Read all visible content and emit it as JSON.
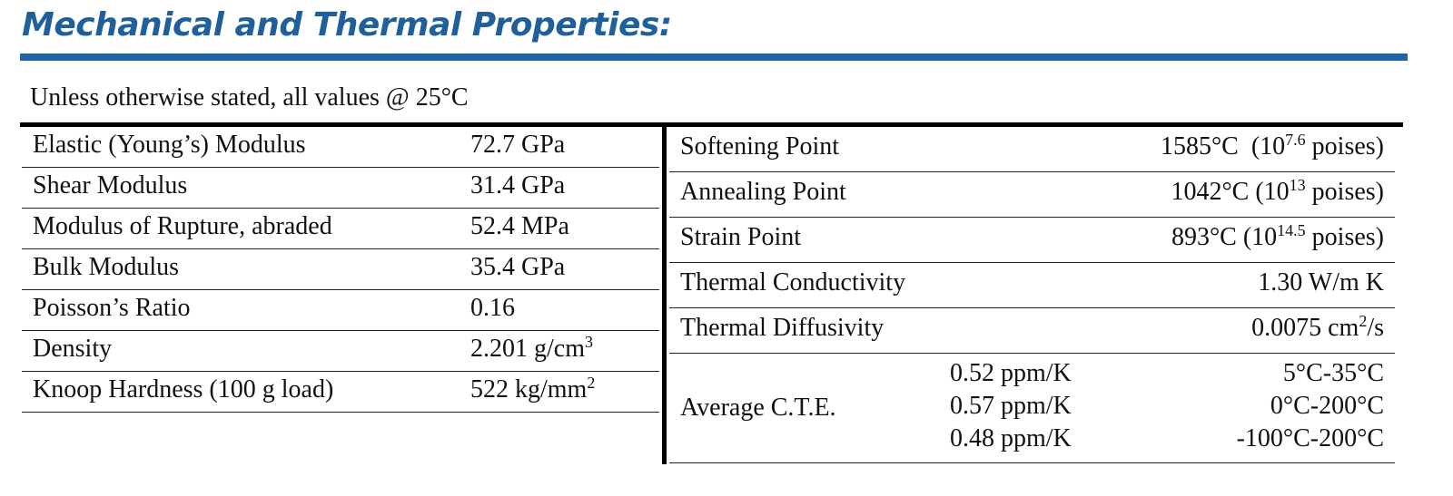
{
  "title": "Mechanical and Thermal Properties:",
  "subtitle": "Unless otherwise stated, all values @ 25°C",
  "left_rows": [
    {
      "label": "Elastic (Young’s) Modulus",
      "value": "72.7 GPa"
    },
    {
      "label": "Shear Modulus",
      "value": "31.4 GPa"
    },
    {
      "label": "Modulus of Rupture, abraded",
      "value": "52.4 MPa"
    },
    {
      "label": "Bulk Modulus",
      "value": "35.4 GPa"
    },
    {
      "label": "Poisson’s Ratio",
      "value": "0.16"
    },
    {
      "label": "Density",
      "value_base": "2.201 g/cm",
      "value_sup": "3"
    },
    {
      "label": "Knoop Hardness (100 g load)",
      "value_base": "522 kg/mm",
      "value_sup": "2"
    }
  ],
  "right_rows": [
    {
      "label": "Softening Point",
      "value_pre": "1585°C  (10",
      "value_sup": "7.6",
      "value_post": " poises)"
    },
    {
      "label": "Annealing Point",
      "value_pre": "1042°C (10",
      "value_sup": "13",
      "value_post": " poises)"
    },
    {
      "label": "Strain Point",
      "value_pre": "893°C (10",
      "value_sup": "14.5",
      "value_post": " poises)"
    },
    {
      "label": "Thermal Conductivity",
      "value": "1.30 W/m K"
    },
    {
      "label": "Thermal Diffusivity",
      "value_pre": "0.0075 cm",
      "value_sup": "2",
      "value_post": "/s"
    }
  ],
  "cte": {
    "label": "Average C.T.E.",
    "entries": [
      {
        "value": "0.52 ppm/K",
        "range": "5°C-35°C"
      },
      {
        "value": "0.57 ppm/K",
        "range": "0°C-200°C"
      },
      {
        "value": "0.48 ppm/K",
        "range": "-100°C-200°C"
      }
    ]
  }
}
